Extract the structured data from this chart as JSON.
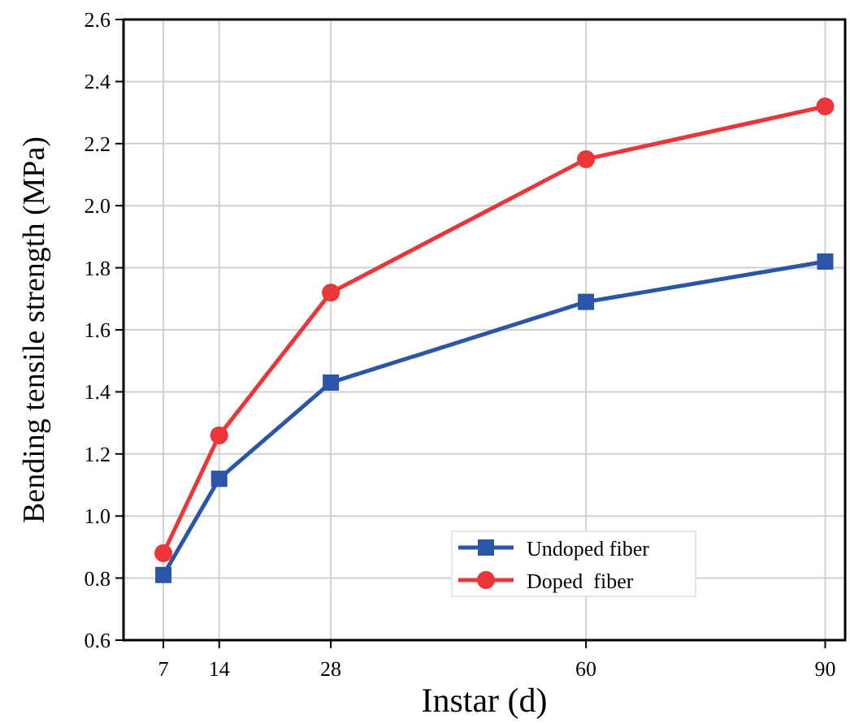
{
  "chart_data": {
    "type": "line",
    "xlabel": "Instar (d)",
    "ylabel": "Bending tensile strength (MPa)",
    "x": [
      7,
      14,
      28,
      60,
      90
    ],
    "series": [
      {
        "name": "Undoped fiber",
        "color": "#2a55a8",
        "values": [
          0.81,
          1.12,
          1.43,
          1.69,
          1.82
        ],
        "marker": "square"
      },
      {
        "name": "Doped  fiber",
        "color": "#ec3538",
        "values": [
          0.88,
          1.26,
          1.72,
          2.15,
          2.32
        ],
        "marker": "circle"
      }
    ],
    "xlim": [
      2,
      92.5
    ],
    "xticks": [
      7,
      14,
      28,
      60,
      90
    ],
    "ylim": [
      0.6,
      2.6
    ],
    "yticks": [
      {
        "value": 0.6,
        "label": "0.6"
      },
      {
        "value": 0.8,
        "label": "0.8"
      },
      {
        "value": 1,
        "label": "1.0"
      },
      {
        "value": 1.2,
        "label": "1.2"
      },
      {
        "value": 1.4,
        "label": "1.4"
      },
      {
        "value": 1.6,
        "label": "1.6"
      },
      {
        "value": 1.8,
        "label": "1.8"
      },
      {
        "value": 2,
        "label": "2.0"
      },
      {
        "value": 2.2,
        "label": "2.2"
      },
      {
        "value": 2.4,
        "label": "2.4"
      },
      {
        "value": 2.6,
        "label": "2.6"
      }
    ],
    "grid": true,
    "legend": "bottom right",
    "line_style": "solid"
  }
}
